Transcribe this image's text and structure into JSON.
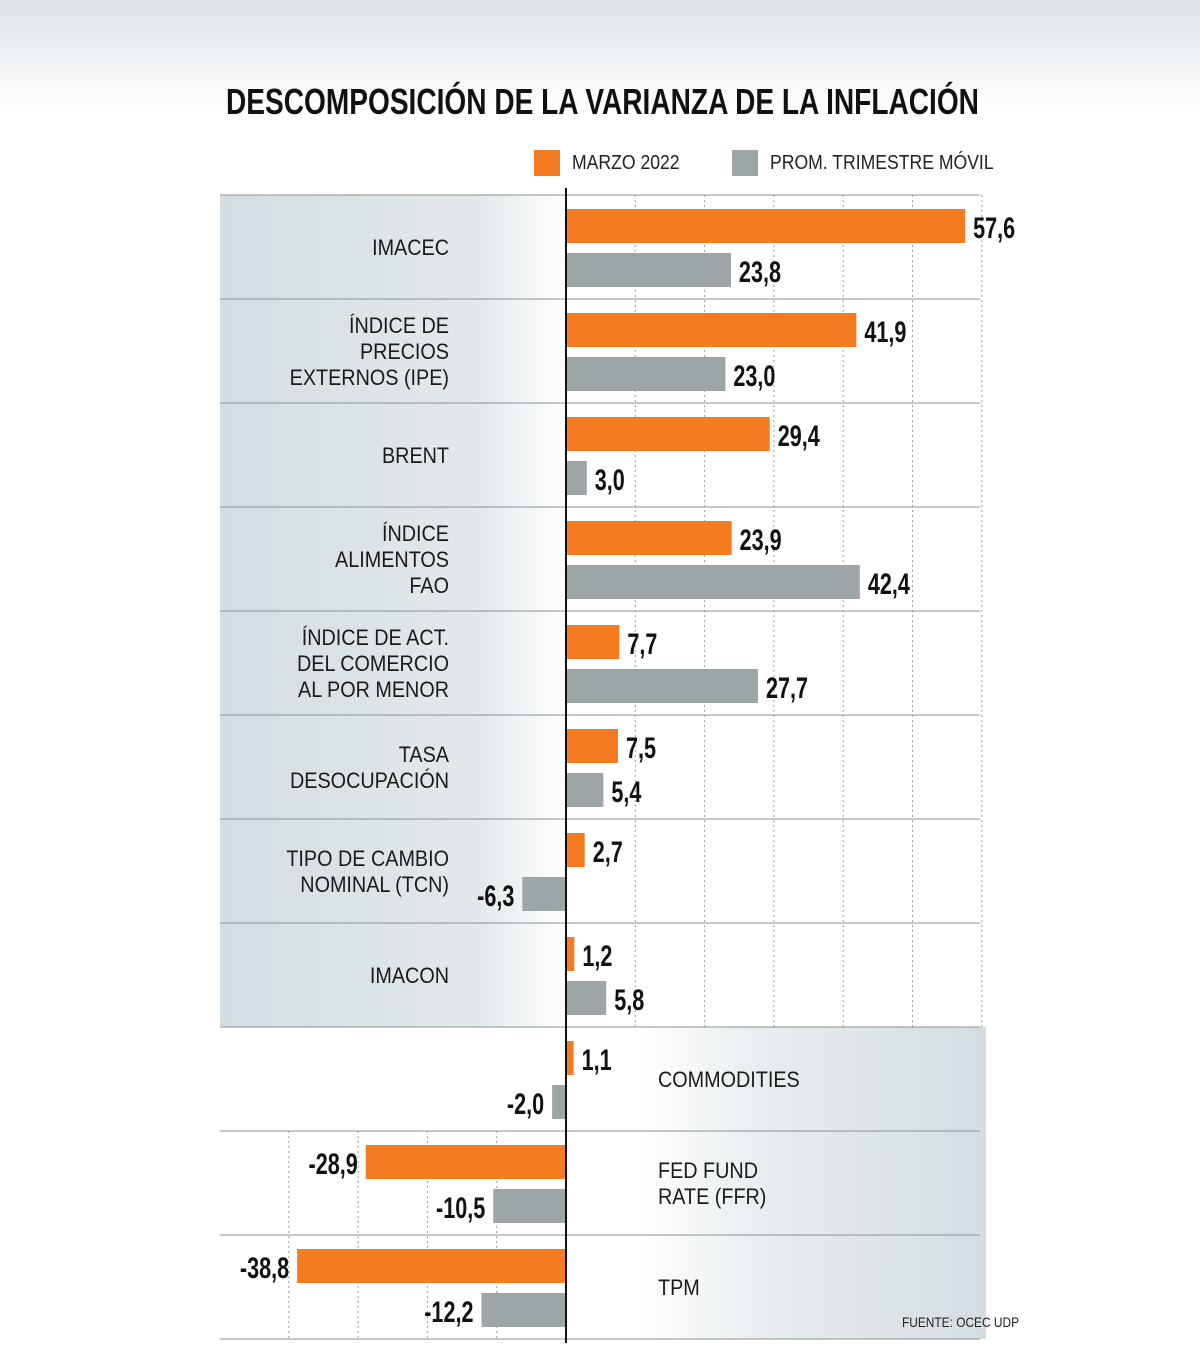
{
  "title": "DESCOMPOSICIÓN DE LA VARIANZA DE LA INFLACIÓN",
  "source": "FUENTE: OCEC UDP",
  "colors": {
    "march": "#f47b20",
    "avg": "#9ea5a7",
    "band": "#d8e0e3",
    "grid": "#9aa0a3",
    "axis": "#111111"
  },
  "chart_data": {
    "type": "bar",
    "orientation": "horizontal",
    "title": "DESCOMPOSICIÓN DE LA VARIANZA DE LA INFLACIÓN",
    "legend_position": "top-right",
    "grid": true,
    "xlim": [
      -40,
      60
    ],
    "categories": [
      "IMACEC",
      "ÍNDICE DE PRECIOS EXTERNOS (IPE)",
      "BRENT",
      "ÍNDICE ALIMENTOS FAO",
      "ÍNDICE DE ACT. DEL COMERCIO AL POR MENOR",
      "TASA DESOCUPACIÓN",
      "TIPO DE CAMBIO NOMINAL (TCN)",
      "IMACON",
      "COMMODITIES",
      "FED FUND RATE (FFR)",
      "TPM"
    ],
    "category_lines": [
      [
        "IMACEC"
      ],
      [
        "ÍNDICE DE",
        "PRECIOS",
        "EXTERNOS (IPE)"
      ],
      [
        "BRENT"
      ],
      [
        "ÍNDICE",
        "ALIMENTOS",
        "FAO"
      ],
      [
        "ÍNDICE DE ACT.",
        "DEL COMERCIO",
        "AL POR MENOR"
      ],
      [
        "TASA",
        "DESOCUPACIÓN"
      ],
      [
        "TIPO DE CAMBIO",
        "NOMINAL (TCN)"
      ],
      [
        "IMACON"
      ],
      [
        "COMMODITIES"
      ],
      [
        "FED FUND",
        "RATE (FFR)"
      ],
      [
        "TPM"
      ]
    ],
    "series": [
      {
        "name": "MARZO 2022",
        "values": [
          57.6,
          41.9,
          29.4,
          23.9,
          7.7,
          7.5,
          2.7,
          1.2,
          1.1,
          -28.9,
          -38.8
        ],
        "labels": [
          "57,6",
          "41,9",
          "29,4",
          "23,9",
          "7,7",
          "7,5",
          "2,7",
          "1,2",
          "1,1",
          "-28,9",
          "-38,8"
        ]
      },
      {
        "name": "PROM. TRIMESTRE MÓVIL",
        "values": [
          23.8,
          23.0,
          3.0,
          42.4,
          27.7,
          5.4,
          -6.3,
          5.8,
          -2.0,
          -10.5,
          -12.2
        ],
        "labels": [
          "23,8",
          "23,0",
          "3,0",
          "42,4",
          "27,7",
          "5,4",
          "-6,3",
          "5,8",
          "-2,0",
          "-10,5",
          "-12,2"
        ]
      }
    ]
  }
}
